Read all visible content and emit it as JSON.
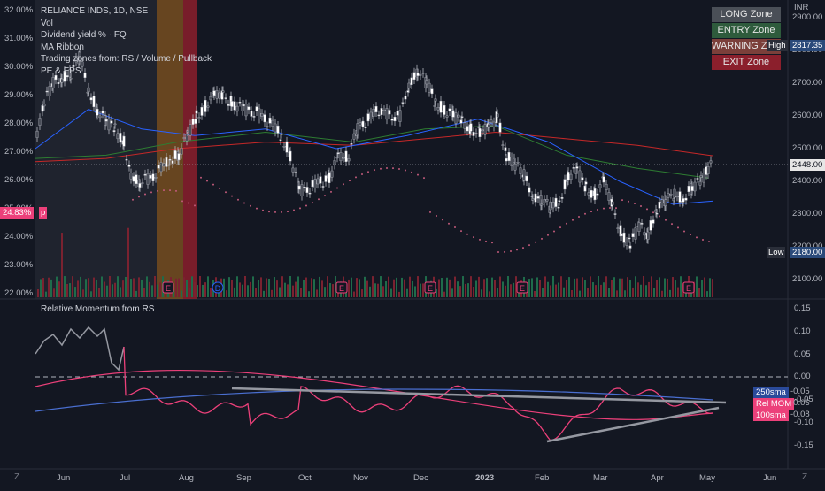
{
  "legend": {
    "symbol": "RELIANCE INDS, 1D, NSE",
    "vol": "Vol",
    "dividend": "Dividend yield % · FQ",
    "ma_ribbon": "MA Ribbon",
    "trading_zones": "Trading zones from: RS / Volume / Pullback",
    "pe_eps": "PE & EPS"
  },
  "zones": {
    "long": "LONG Zone",
    "entry": "ENTRY Zone",
    "warning": "WARNING Zone",
    "exit": "EXIT Zone"
  },
  "currency": "INR",
  "price_axis": [
    "2900.00",
    "2800.00",
    "2700.00",
    "2600.00",
    "2500.00",
    "2400.00",
    "2300.00",
    "2200.00",
    "2100.00"
  ],
  "dividend_axis": [
    "32.00%",
    "31.00%",
    "30.00%",
    "29.00%",
    "28.00%",
    "27.00%",
    "26.00%",
    "25.00%",
    "24.00%",
    "23.00%",
    "22.00%"
  ],
  "tags": {
    "high_label": "High",
    "high_value": "2817.35",
    "last_price": "2448.00",
    "low_label": "Low",
    "low_value": "2180.00",
    "div_yield_value": "24.83%",
    "div_yield_marker": "p"
  },
  "lower_pane": {
    "title": "Relative Momentum from RS",
    "axis": [
      "0.15",
      "0.10",
      "0.05",
      "0.00",
      "-0.05",
      "-0.10",
      "-0.15"
    ],
    "tag_250": "250sma",
    "tag_250_value": "-0.05",
    "tag_rel": "Rel MOM",
    "tag_rel_value": "-0.06",
    "tag_100": "100sma",
    "tag_100_value": "-0.08"
  },
  "time_axis": [
    "Jun",
    "Jul",
    "Aug",
    "Sep",
    "Oct",
    "Nov",
    "Dec",
    "2023",
    "Feb",
    "Mar",
    "Apr",
    "May",
    "Jun"
  ],
  "event_markers": [
    "E",
    "D",
    "E",
    "E",
    "E",
    "E"
  ],
  "colors": {
    "bg": "#131722",
    "ma_red": "#c62828",
    "ma_green": "#2e7d32",
    "ma_blue": "#2962ff",
    "pink": "#ec407a",
    "exit_band": "#8b1f2c",
    "entry_band": "#8b5a1f"
  },
  "footer": {
    "left": "Z",
    "right": "Z"
  }
}
